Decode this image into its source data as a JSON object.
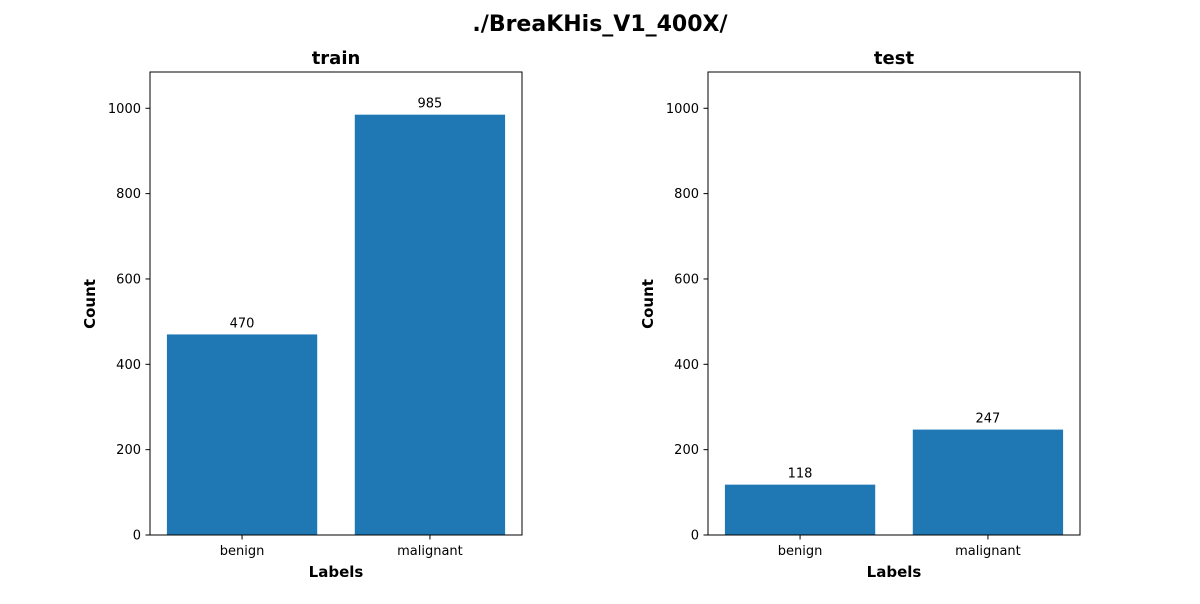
{
  "figure": {
    "title": "./BreaKHis_V1_400X/"
  },
  "chart_data": [
    {
      "type": "bar",
      "title": "train",
      "xlabel": "Labels",
      "ylabel": "Count",
      "categories": [
        "benign",
        "malignant"
      ],
      "values": [
        470,
        985
      ],
      "data_labels": [
        "470",
        "985"
      ],
      "ylim": [
        0,
        1085
      ],
      "yticks": [
        0,
        200,
        400,
        600,
        800,
        1000
      ],
      "bar_color": "#1f77b4",
      "grid": false
    },
    {
      "type": "bar",
      "title": "test",
      "xlabel": "Labels",
      "ylabel": "Count",
      "categories": [
        "benign",
        "malignant"
      ],
      "values": [
        118,
        247
      ],
      "data_labels": [
        "118",
        "247"
      ],
      "ylim": [
        0,
        1085
      ],
      "yticks": [
        0,
        200,
        400,
        600,
        800,
        1000
      ],
      "bar_color": "#1f77b4",
      "grid": false
    }
  ]
}
